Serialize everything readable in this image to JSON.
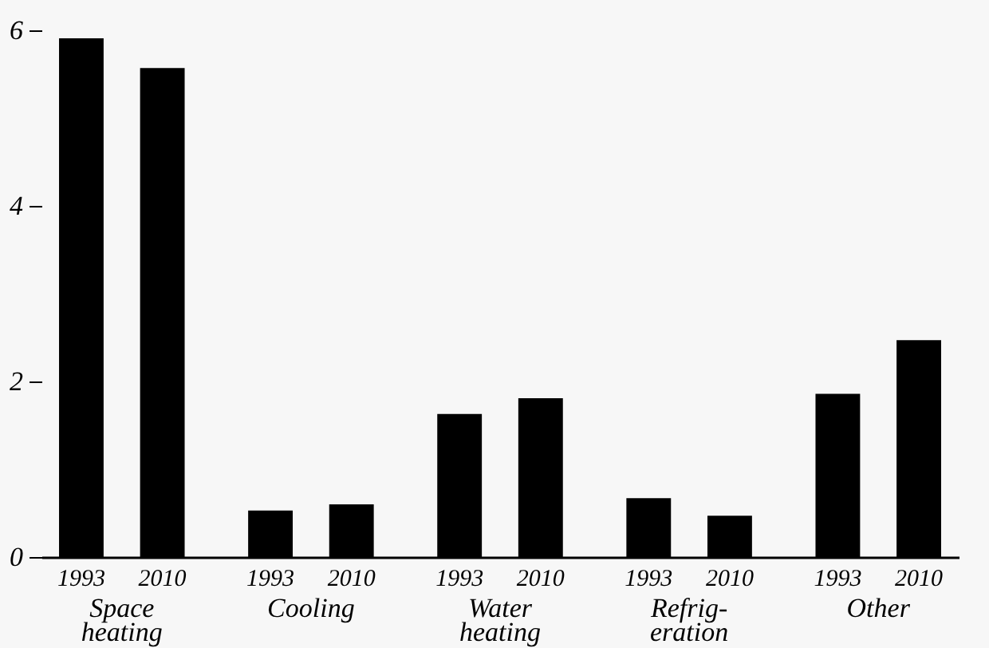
{
  "chart_data": {
    "type": "bar",
    "categories": [
      "Space heating",
      "Cooling",
      "Water heating",
      "Refrig- eration",
      "Other"
    ],
    "series": [
      {
        "name": "1993",
        "color": "#000000",
        "values": [
          5.91,
          0.53,
          1.63,
          0.67,
          1.86
        ]
      },
      {
        "name": "2010",
        "color": "#000000",
        "values": [
          5.57,
          0.6,
          1.81,
          0.47,
          2.47
        ]
      }
    ],
    "ylim": [
      0,
      6
    ],
    "yticks": [
      0,
      2,
      4,
      6
    ],
    "grid": false,
    "legend": "bottom"
  }
}
